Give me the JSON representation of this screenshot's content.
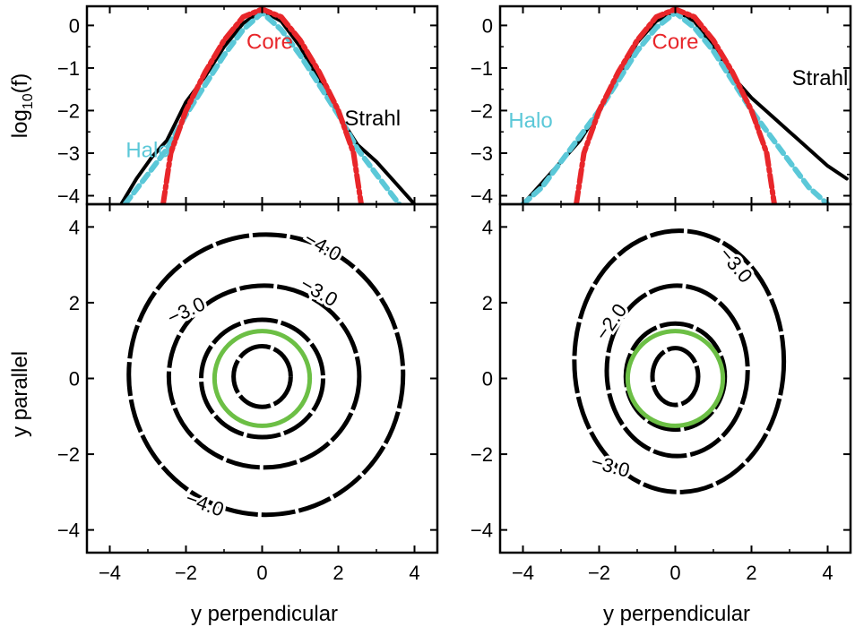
{
  "colors": {
    "strahl": "#000000",
    "core": "#e8262a",
    "halo": "#5bc8d8",
    "contour": "#000000",
    "reference_circle": "#6cbf45",
    "axes": "#000000"
  },
  "shared": {
    "ylabel_top": "log",
    "ylabel_top_sub": "10",
    "ylabel_top_tail": "(f)",
    "ylabel_bottom": "y parallel",
    "xlabel": "y perpendicular"
  },
  "chart_data": [
    {
      "panel": "top-left",
      "type": "line",
      "xlim": [
        -4.6,
        4.6
      ],
      "ylim": [
        -4.2,
        0.45
      ],
      "xlabel": "",
      "ylabel": "log10(f)",
      "yticks": [
        0,
        -1,
        -2,
        -3,
        -4
      ],
      "grid": false,
      "series": [
        {
          "name": "Strahl",
          "style": "solid",
          "x": [
            -3.7,
            -3.3,
            -2.9,
            -2.5,
            -2.0,
            -1.5,
            -1.0,
            -0.5,
            0,
            0.5,
            1.0,
            1.5,
            2.0,
            2.5,
            3.0,
            3.5,
            4.0
          ],
          "y": [
            -4.2,
            -3.6,
            -3.1,
            -2.7,
            -1.8,
            -1.2,
            -0.5,
            0.05,
            0.35,
            0.1,
            -0.5,
            -1.3,
            -2.1,
            -2.8,
            -3.2,
            -3.7,
            -4.2
          ]
        },
        {
          "name": "Core",
          "style": "dashdot",
          "x": [
            -2.6,
            -2.4,
            -2.0,
            -1.5,
            -1.0,
            -0.5,
            0,
            0.5,
            1.0,
            1.5,
            2.0,
            2.4,
            2.6
          ],
          "y": [
            -4.2,
            -3.0,
            -2.0,
            -1.1,
            -0.35,
            0.2,
            0.38,
            0.2,
            -0.35,
            -1.1,
            -2.0,
            -3.0,
            -4.2
          ]
        },
        {
          "name": "Halo",
          "style": "dashed",
          "x": [
            -3.6,
            -3.0,
            -2.5,
            -2.0,
            -1.5,
            -1.0,
            -0.5,
            0,
            0.5,
            1.0,
            1.5,
            2.0,
            2.5,
            3.0,
            3.6
          ],
          "y": [
            -4.2,
            -3.5,
            -2.9,
            -2.1,
            -1.4,
            -0.7,
            -0.1,
            0.3,
            -0.1,
            -0.7,
            -1.4,
            -2.1,
            -2.9,
            -3.5,
            -4.2
          ]
        }
      ],
      "annotations": [
        {
          "text": "Core",
          "x": 0.2,
          "y": -0.55,
          "color": "core"
        },
        {
          "text": "Strahl",
          "x": 2.9,
          "y": -2.35,
          "color": "strahl"
        },
        {
          "text": "Halo",
          "x": -3.0,
          "y": -3.1,
          "color": "halo"
        }
      ]
    },
    {
      "panel": "top-right",
      "type": "line",
      "xlim": [
        -4.6,
        4.6
      ],
      "ylim": [
        -4.2,
        0.45
      ],
      "xlabel": "",
      "ylabel": "",
      "yticks": [
        0,
        -1,
        -2,
        -3,
        -4
      ],
      "grid": false,
      "series": [
        {
          "name": "Strahl",
          "style": "solid",
          "x": [
            -4.0,
            -3.5,
            -3.0,
            -2.5,
            -2.0,
            -1.5,
            -1.0,
            -0.5,
            0,
            0.5,
            1.0,
            1.5,
            2.0,
            2.5,
            3.0,
            3.5,
            4.0,
            4.5
          ],
          "y": [
            -4.2,
            -3.7,
            -3.2,
            -2.7,
            -2.0,
            -1.2,
            -0.4,
            0.1,
            0.35,
            0.1,
            -0.5,
            -1.2,
            -1.7,
            -2.1,
            -2.5,
            -2.9,
            -3.3,
            -3.6
          ]
        },
        {
          "name": "Core",
          "style": "dashdot",
          "x": [
            -2.6,
            -2.4,
            -2.0,
            -1.5,
            -1.0,
            -0.5,
            0,
            0.5,
            1.0,
            1.5,
            2.0,
            2.4,
            2.6
          ],
          "y": [
            -4.2,
            -3.0,
            -2.0,
            -1.1,
            -0.35,
            0.2,
            0.38,
            0.2,
            -0.35,
            -1.1,
            -2.0,
            -3.0,
            -4.2
          ]
        },
        {
          "name": "Halo",
          "style": "dashed",
          "x": [
            -4.0,
            -3.5,
            -3.0,
            -2.5,
            -2.0,
            -1.5,
            -1.0,
            -0.5,
            0,
            0.5,
            1.0,
            1.5,
            2.0,
            2.5,
            3.0,
            3.5,
            4.0
          ],
          "y": [
            -4.2,
            -3.8,
            -3.2,
            -2.6,
            -2.0,
            -1.3,
            -0.6,
            -0.05,
            0.3,
            -0.05,
            -0.6,
            -1.3,
            -2.0,
            -2.6,
            -3.2,
            -3.8,
            -4.2
          ]
        }
      ],
      "annotations": [
        {
          "text": "Core",
          "x": 0.0,
          "y": -0.55,
          "color": "core"
        },
        {
          "text": "Strahl",
          "x": 3.8,
          "y": -1.4,
          "color": "strahl"
        },
        {
          "text": "Halo",
          "x": -3.8,
          "y": -2.4,
          "color": "halo"
        }
      ]
    },
    {
      "panel": "bottom-left",
      "type": "contour",
      "xlim": [
        -4.6,
        4.6
      ],
      "ylim": [
        -4.6,
        4.6
      ],
      "xticks": [
        -4,
        -2,
        0,
        2,
        4
      ],
      "yticks": [
        4,
        2,
        0,
        -2,
        -4
      ],
      "xlabel": "y perpendicular",
      "ylabel": "y parallel",
      "grid": false,
      "contours": [
        {
          "cx": 0.1,
          "cy": 0.1,
          "rx": 3.6,
          "ry": 3.7
        },
        {
          "cx": 0.05,
          "cy": 0.05,
          "rx": 2.5,
          "ry": 2.4
        },
        {
          "cx": 0.0,
          "cy": 0.0,
          "rx": 1.6,
          "ry": 1.55
        },
        {
          "cx": 0.0,
          "cy": 0.05,
          "rx": 0.75,
          "ry": 0.8
        }
      ],
      "reference_circle": {
        "cx": 0.0,
        "cy": 0.0,
        "r": 1.25
      },
      "labels": [
        {
          "text": "−4.0",
          "x": 1.6,
          "y": 3.5,
          "angle": 30
        },
        {
          "text": "−3.0",
          "x": 1.5,
          "y": 2.3,
          "angle": 30
        },
        {
          "text": "−3.0",
          "x": -2.0,
          "y": 1.8,
          "angle": -25
        },
        {
          "text": "−4.0",
          "x": -1.5,
          "y": -3.3,
          "angle": 20
        }
      ]
    },
    {
      "panel": "bottom-right",
      "type": "contour",
      "xlim": [
        -4.6,
        4.6
      ],
      "ylim": [
        -4.6,
        4.6
      ],
      "xticks": [
        -4,
        -2,
        0,
        2,
        4
      ],
      "yticks": [
        4,
        2,
        0,
        -2,
        -4
      ],
      "xlabel": "y perpendicular",
      "ylabel": "",
      "grid": false,
      "contours": [
        {
          "cx": 0.1,
          "cy": 0.45,
          "rx": 2.75,
          "ry": 3.45
        },
        {
          "cx": 0.05,
          "cy": 0.2,
          "rx": 1.85,
          "ry": 2.25
        },
        {
          "cx": 0.0,
          "cy": 0.05,
          "rx": 1.3,
          "ry": 1.4
        },
        {
          "cx": 0.0,
          "cy": 0.05,
          "rx": 0.6,
          "ry": 0.75
        }
      ],
      "reference_circle": {
        "cx": 0.0,
        "cy": 0.0,
        "r": 1.25
      },
      "labels": [
        {
          "text": "−3.0",
          "x": 1.6,
          "y": 3.0,
          "angle": 50
        },
        {
          "text": "−2.0",
          "x": -1.7,
          "y": 1.5,
          "angle": -55
        },
        {
          "text": "−3.0",
          "x": -1.7,
          "y": -2.3,
          "angle": 15
        }
      ]
    }
  ]
}
